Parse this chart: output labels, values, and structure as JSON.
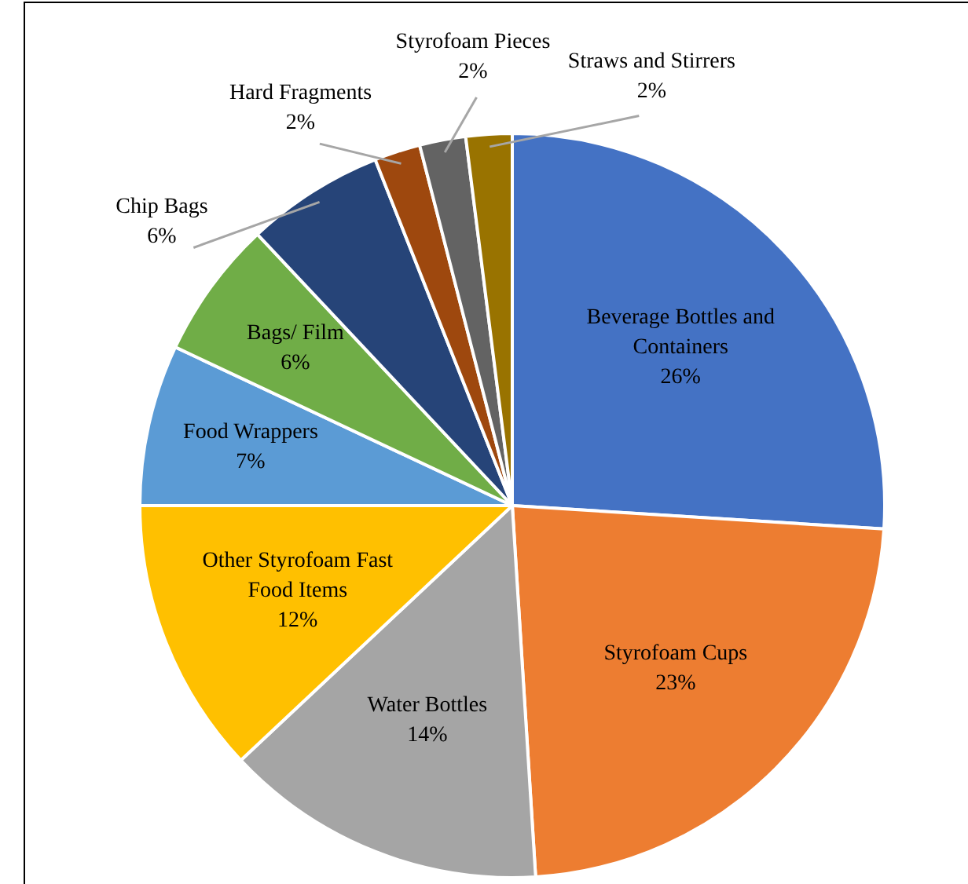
{
  "chart_data": {
    "type": "pie",
    "categories": [
      "Beverage Bottles and Containers",
      "Styrofoam Cups",
      "Water Bottles",
      "Other Styrofoam Fast Food Items",
      "Food Wrappers",
      "Bags/ Film",
      "Chip Bags",
      "Hard Fragments",
      "Styrofoam Pieces",
      "Straws and Stirrers"
    ],
    "values": [
      26,
      23,
      14,
      12,
      7,
      6,
      6,
      2,
      2,
      2
    ],
    "colors": [
      "#4472c4",
      "#ed7d31",
      "#a5a5a5",
      "#ffc000",
      "#5b9bd5",
      "#70ad47",
      "#264478",
      "#9e480e",
      "#636363",
      "#997300"
    ],
    "value_labels": [
      "26%",
      "23%",
      "14%",
      "12%",
      "7%",
      "6%",
      "6%",
      "2%",
      "2%",
      "2%"
    ],
    "legend": false
  }
}
